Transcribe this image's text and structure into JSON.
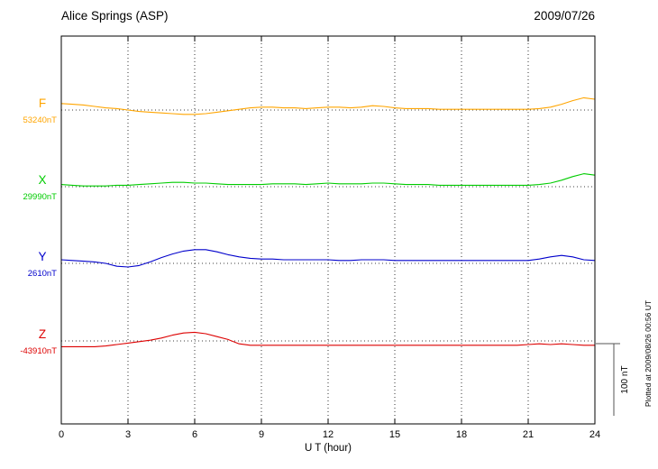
{
  "header": {
    "station": "Alice Springs (ASP)",
    "date": "2009/07/26"
  },
  "footer": {
    "plotted_at": "Plotted at 2009/08/26 00:56 UT"
  },
  "axis": {
    "xlabel": "U T (hour)",
    "x_ticks": [
      "0",
      "3",
      "6",
      "9",
      "12",
      "15",
      "18",
      "21",
      "24"
    ]
  },
  "scale_bar": {
    "label": "100 nT",
    "span_nT": 100
  },
  "chart_data": {
    "type": "line",
    "title": "Alice Springs (ASP) magnetogram 2009/07/26",
    "xlabel": "U T (hour)",
    "ylabel": "",
    "grid": "dotted vertical lines every 3 hours, dotted horizontal baseline per trace",
    "x_range_hours": [
      0,
      24
    ],
    "x_tick_hours": [
      0,
      3,
      6,
      9,
      12,
      15,
      18,
      21,
      24
    ],
    "x_step_hours": 0.5,
    "scale_nT_per_division": 100,
    "series": [
      {
        "name": "F",
        "baseline_label": "53240nT",
        "baseline_nT": 53240,
        "color": "#FFA500",
        "offsets_nT": [
          9,
          8,
          7,
          5,
          3,
          2,
          0,
          -2,
          -3,
          -4,
          -5,
          -6,
          -6,
          -5,
          -3,
          -1,
          1,
          3,
          4,
          4,
          3,
          3,
          2,
          3,
          4,
          4,
          3,
          4,
          6,
          5,
          3,
          2,
          2,
          2,
          1,
          1,
          1,
          1,
          1,
          1,
          1,
          1,
          1,
          2,
          4,
          8,
          13,
          17,
          15
        ]
      },
      {
        "name": "X",
        "baseline_label": "29990nT",
        "baseline_nT": 29990,
        "color": "#00CC00",
        "offsets_nT": [
          3,
          2,
          1,
          1,
          1,
          2,
          2,
          3,
          4,
          5,
          6,
          6,
          5,
          5,
          4,
          3,
          3,
          3,
          3,
          4,
          4,
          4,
          3,
          4,
          5,
          4,
          4,
          4,
          5,
          5,
          4,
          3,
          3,
          3,
          2,
          2,
          2,
          2,
          2,
          2,
          2,
          2,
          2,
          3,
          5,
          9,
          14,
          18,
          16
        ]
      },
      {
        "name": "Y",
        "baseline_label": "2610nT",
        "baseline_nT": 2610,
        "color": "#0000CC",
        "offsets_nT": [
          5,
          4,
          3,
          2,
          0,
          -4,
          -5,
          -3,
          2,
          8,
          13,
          17,
          19,
          19,
          16,
          12,
          9,
          7,
          6,
          6,
          5,
          5,
          5,
          5,
          5,
          4,
          4,
          5,
          5,
          5,
          4,
          4,
          4,
          4,
          4,
          4,
          4,
          4,
          4,
          4,
          4,
          4,
          4,
          6,
          9,
          11,
          9,
          5,
          4
        ]
      },
      {
        "name": "Z",
        "baseline_label": "-43910nT",
        "baseline_nT": -43910,
        "color": "#DD0000",
        "offsets_nT": [
          -8,
          -8,
          -8,
          -8,
          -7,
          -5,
          -3,
          -1,
          1,
          4,
          8,
          11,
          12,
          10,
          6,
          2,
          -4,
          -6,
          -6,
          -6,
          -6,
          -6,
          -6,
          -6,
          -6,
          -6,
          -6,
          -6,
          -6,
          -6,
          -6,
          -6,
          -6,
          -6,
          -6,
          -6,
          -6,
          -6,
          -6,
          -6,
          -6,
          -6,
          -5,
          -4,
          -5,
          -4,
          -5,
          -6,
          -6
        ]
      }
    ]
  }
}
